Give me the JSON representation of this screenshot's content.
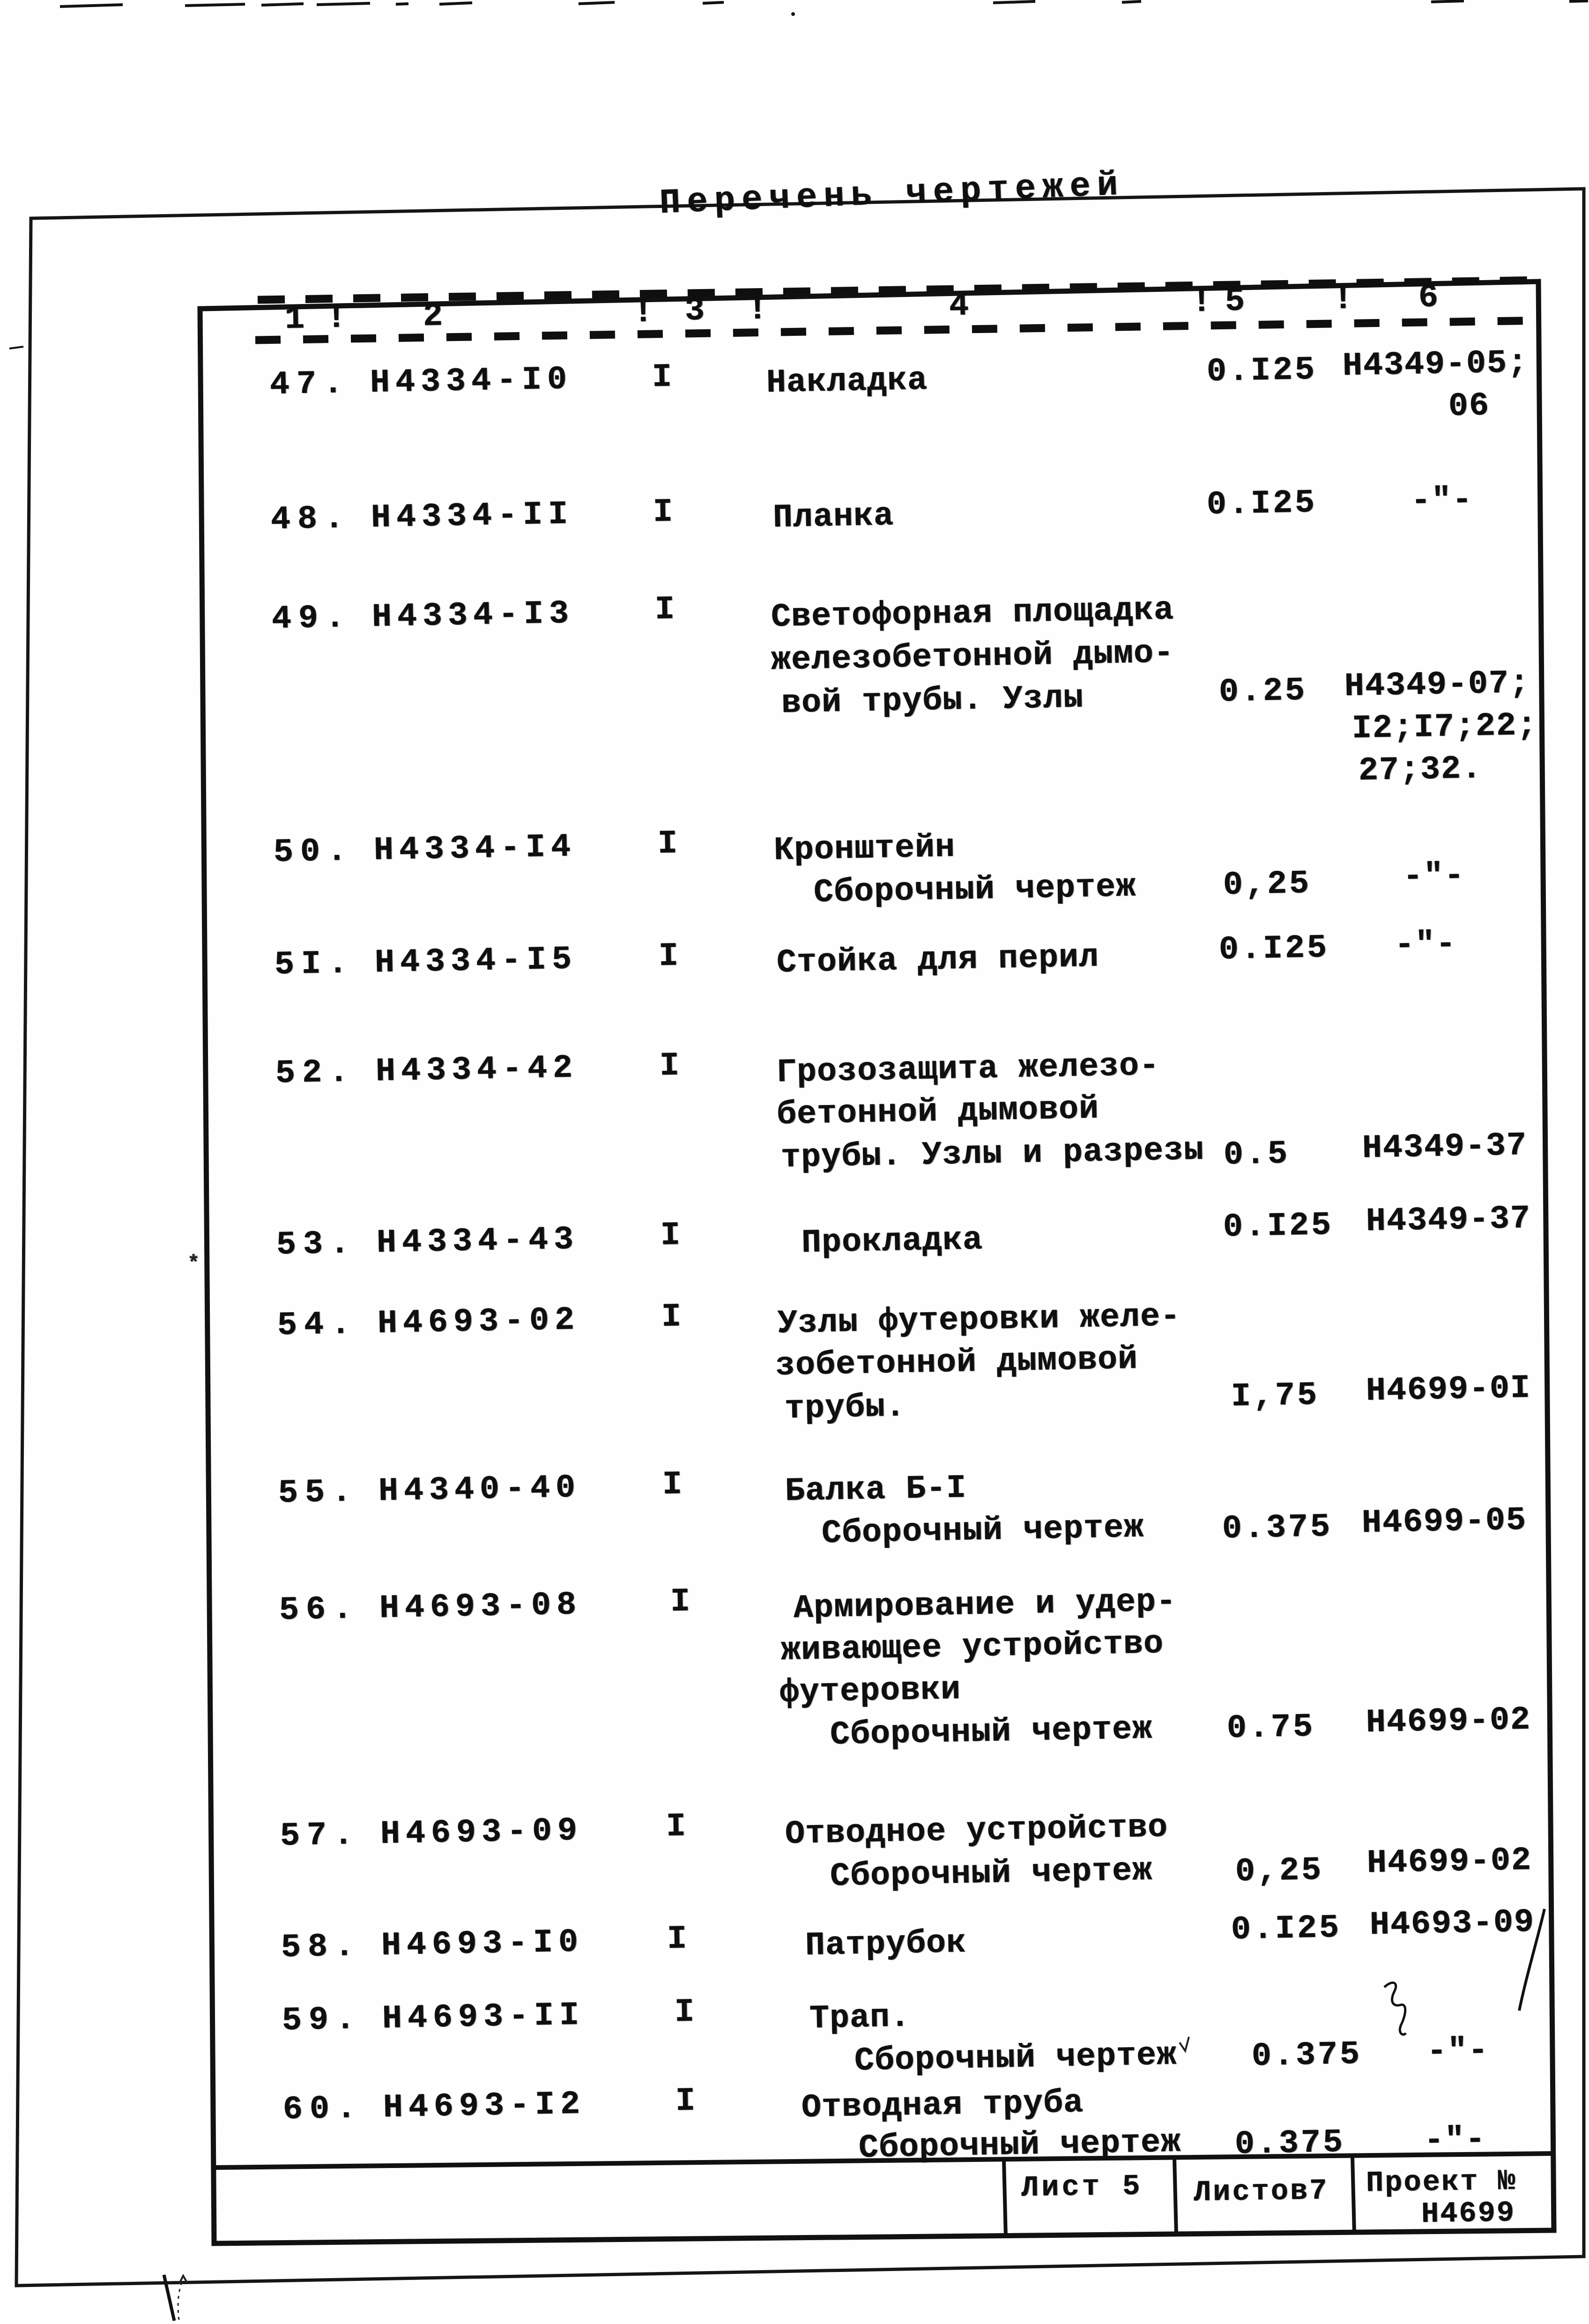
{
  "title": "Перечень чертежей",
  "header": {
    "cells": [
      "1",
      "!",
      "2",
      "!",
      "3",
      "!",
      "4",
      "!",
      "5",
      "!",
      "6"
    ]
  },
  "rows": [
    {
      "no": "47.",
      "code": "Н4334-I0",
      "qty": "I",
      "name": [
        "Накладка"
      ],
      "scale": "0.I25",
      "ref": [
        "Н4349-05;",
        "06"
      ]
    },
    {
      "no": "48.",
      "code": "Н4334-II",
      "qty": "I",
      "name": [
        "Планка"
      ],
      "scale": "0.I25",
      "ref": [
        "-\"-"
      ]
    },
    {
      "no": "49.",
      "code": "Н4334-I3",
      "qty": "I",
      "name": [
        "Светофорная площадка",
        "железобетонной дымо-",
        "вой трубы. Узлы"
      ],
      "scale": "0.25",
      "ref": [
        "Н4349-07;",
        "I2;I7;22;",
        "27;32."
      ]
    },
    {
      "no": "50.",
      "code": "Н4334-I4",
      "qty": "I",
      "name": [
        "Кронштейн",
        "Сборочный чертеж"
      ],
      "scale": "0,25",
      "ref": [
        "-\"-"
      ]
    },
    {
      "no": "5I.",
      "code": "Н4334-I5",
      "qty": "I",
      "name": [
        "Стойка для перил"
      ],
      "scale": "0.I25",
      "ref": [
        "-\"-"
      ]
    },
    {
      "no": "52.",
      "code": "Н4334-42",
      "qty": "I",
      "name": [
        "Грозозащита железо-",
        "бетонной дымовой",
        "трубы. Узлы и разрезы"
      ],
      "scale": "0.5",
      "ref": [
        "Н4349-37"
      ]
    },
    {
      "no": "53.",
      "code": "Н4334-43",
      "qty": "I",
      "name": [
        "Прокладка"
      ],
      "scale": "0.I25",
      "ref": [
        "Н4349-37"
      ]
    },
    {
      "no": "54.",
      "code": "Н4693-02",
      "qty": "I",
      "name": [
        "Узлы футеровки желе-",
        "зобетонной дымовой",
        "трубы."
      ],
      "scale": "I,75",
      "ref": [
        "Н4699-0I"
      ]
    },
    {
      "no": "55.",
      "code": "Н4340-40",
      "qty": "I",
      "name": [
        "Балка Б-I",
        "Сборочный чертеж"
      ],
      "scale": "0.375",
      "ref": [
        "Н4699-05"
      ]
    },
    {
      "no": "56.",
      "code": "Н4693-08",
      "qty": "I",
      "name": [
        "Армирование и удер-",
        "живающее устройство",
        "футеровки",
        "Сборочный чертеж"
      ],
      "scale": "0.75",
      "ref": [
        "Н4699-02"
      ]
    },
    {
      "no": "57.",
      "code": "Н4693-09",
      "qty": "I",
      "name": [
        "Отводное устройство",
        "Сборочный чертеж"
      ],
      "scale": "0,25",
      "ref": [
        "Н4699-02"
      ]
    },
    {
      "no": "58.",
      "code": "Н4693-I0",
      "qty": "I",
      "name": [
        "Патрубок"
      ],
      "scale": "0.I25",
      "ref": [
        "Н4693-09"
      ]
    },
    {
      "no": "59.",
      "code": "Н4693-II",
      "qty": "I",
      "name": [
        "Трап.",
        "Сборочный чертеж"
      ],
      "scale": "0.375",
      "ref": [
        "-\"-"
      ]
    },
    {
      "no": "60.",
      "code": "Н4693-I2",
      "qty": "I",
      "name": [
        "Отводная труба",
        "Сборочный чертеж"
      ],
      "scale": "0.375",
      "ref": [
        "-\"-"
      ]
    }
  ],
  "title_block": {
    "sheet": "Лист 5",
    "sheets": "Листов7",
    "project_label": "Проект №",
    "project_number": "Н4699"
  },
  "ink_color": "#0f0f0f",
  "paper_color": "#fefefe"
}
